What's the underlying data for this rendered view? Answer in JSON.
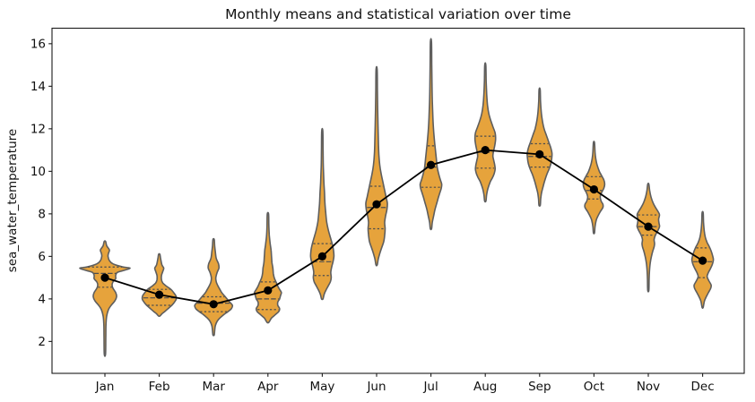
{
  "figure": {
    "title": "Monthly means and statistical variation over time",
    "ylabel": "sea_water_temperature"
  },
  "chart_data": {
    "type": "violin",
    "title": "Monthly means and statistical variation over time",
    "xlabel": "",
    "ylabel": "sea_water_temperature",
    "categories": [
      "Jan",
      "Feb",
      "Mar",
      "Apr",
      "May",
      "Jun",
      "Jul",
      "Aug",
      "Sep",
      "Oct",
      "Nov",
      "Dec"
    ],
    "yticks": [
      2,
      4,
      6,
      8,
      10,
      12,
      14,
      16
    ],
    "ylim": [
      0.5,
      16.73
    ],
    "grid": false,
    "legend": "none",
    "colors": {
      "violin_fill": "#E6A33C",
      "violin_edge": "#5E5E5E",
      "quartile_line": "#4D4D4D",
      "mean_line": "#000000",
      "mean_dot": "#000000",
      "axis": "#1A1A1A",
      "text": "#111111"
    },
    "series": [
      {
        "name": "monthly_mean",
        "values": [
          5.0,
          4.2,
          3.75,
          4.4,
          6.0,
          8.45,
          10.3,
          11.0,
          10.8,
          9.15,
          7.4,
          5.8
        ]
      }
    ],
    "violins": [
      {
        "month": "Jan",
        "mean": 5.0,
        "min": 1.4,
        "max": 6.7,
        "q1": 4.55,
        "median": 5.2,
        "q3": 5.5,
        "profile": [
          [
            6.7,
            0.8
          ],
          [
            6.5,
            2
          ],
          [
            6.3,
            5
          ],
          [
            6.15,
            4
          ],
          [
            6.0,
            3.5
          ],
          [
            5.8,
            5
          ],
          [
            5.65,
            9
          ],
          [
            5.5,
            20
          ],
          [
            5.45,
            28
          ],
          [
            5.35,
            22
          ],
          [
            5.25,
            14
          ],
          [
            5.1,
            12
          ],
          [
            4.95,
            12
          ],
          [
            4.8,
            9
          ],
          [
            4.65,
            8
          ],
          [
            4.5,
            9
          ],
          [
            4.3,
            12
          ],
          [
            4.1,
            13
          ],
          [
            3.9,
            11
          ],
          [
            3.7,
            7
          ],
          [
            3.5,
            4
          ],
          [
            3.2,
            2
          ],
          [
            2.8,
            1.2
          ],
          [
            2.2,
            1
          ],
          [
            1.4,
            0.7
          ]
        ]
      },
      {
        "month": "Feb",
        "mean": 4.2,
        "min": 3.2,
        "max": 6.1,
        "q1": 3.7,
        "median": 4.05,
        "q3": 4.45,
        "profile": [
          [
            6.1,
            0.7
          ],
          [
            5.9,
            1.5
          ],
          [
            5.6,
            3
          ],
          [
            5.45,
            5
          ],
          [
            5.3,
            4
          ],
          [
            5.1,
            2.5
          ],
          [
            4.9,
            2.5
          ],
          [
            4.75,
            4
          ],
          [
            4.6,
            8
          ],
          [
            4.45,
            13
          ],
          [
            4.3,
            16
          ],
          [
            4.15,
            18.5
          ],
          [
            4.0,
            19
          ],
          [
            3.85,
            17
          ],
          [
            3.7,
            14
          ],
          [
            3.55,
            10
          ],
          [
            3.4,
            6
          ],
          [
            3.3,
            3
          ],
          [
            3.2,
            0.8
          ]
        ]
      },
      {
        "month": "Mar",
        "mean": 3.75,
        "min": 2.3,
        "max": 6.8,
        "q1": 3.4,
        "median": 3.8,
        "q3": 4.1,
        "profile": [
          [
            6.8,
            0.7
          ],
          [
            6.5,
            1.2
          ],
          [
            6.2,
            2
          ],
          [
            5.9,
            3
          ],
          [
            5.65,
            5.5
          ],
          [
            5.45,
            6
          ],
          [
            5.25,
            4
          ],
          [
            5.0,
            2.5
          ],
          [
            4.8,
            3
          ],
          [
            4.6,
            5
          ],
          [
            4.45,
            7
          ],
          [
            4.3,
            9
          ],
          [
            4.15,
            12
          ],
          [
            4.0,
            15
          ],
          [
            3.85,
            18
          ],
          [
            3.7,
            21
          ],
          [
            3.55,
            20
          ],
          [
            3.4,
            16
          ],
          [
            3.25,
            11
          ],
          [
            3.1,
            7
          ],
          [
            2.95,
            4
          ],
          [
            2.75,
            2
          ],
          [
            2.5,
            1.2
          ],
          [
            2.3,
            0.7
          ]
        ]
      },
      {
        "month": "Apr",
        "mean": 4.4,
        "min": 2.9,
        "max": 8.0,
        "q1": 3.5,
        "median": 4.0,
        "q3": 4.8,
        "profile": [
          [
            8.0,
            0.7
          ],
          [
            7.5,
            1
          ],
          [
            7.0,
            1.5
          ],
          [
            6.6,
            2.5
          ],
          [
            6.3,
            3.5
          ],
          [
            6.0,
            4
          ],
          [
            5.7,
            4.5
          ],
          [
            5.45,
            5.5
          ],
          [
            5.2,
            6
          ],
          [
            5.0,
            7
          ],
          [
            4.8,
            9
          ],
          [
            4.6,
            11
          ],
          [
            4.45,
            13
          ],
          [
            4.3,
            15
          ],
          [
            4.15,
            14
          ],
          [
            4.0,
            13
          ],
          [
            3.85,
            11
          ],
          [
            3.7,
            11
          ],
          [
            3.55,
            13
          ],
          [
            3.4,
            12
          ],
          [
            3.25,
            8
          ],
          [
            3.1,
            4
          ],
          [
            2.9,
            1
          ]
        ]
      },
      {
        "month": "May",
        "mean": 6.0,
        "min": 4.0,
        "max": 11.9,
        "q1": 5.1,
        "median": 5.75,
        "q3": 6.6,
        "profile": [
          [
            11.9,
            0.6
          ],
          [
            11.0,
            0.9
          ],
          [
            10.2,
            1.2
          ],
          [
            9.5,
            1.8
          ],
          [
            9.0,
            2.5
          ],
          [
            8.5,
            3
          ],
          [
            8.0,
            4
          ],
          [
            7.6,
            5
          ],
          [
            7.2,
            7
          ],
          [
            6.9,
            9
          ],
          [
            6.6,
            11
          ],
          [
            6.3,
            12.5
          ],
          [
            6.0,
            13
          ],
          [
            5.75,
            12
          ],
          [
            5.5,
            10.5
          ],
          [
            5.25,
            9.5
          ],
          [
            5.0,
            10
          ],
          [
            4.8,
            9
          ],
          [
            4.6,
            6.5
          ],
          [
            4.4,
            4
          ],
          [
            4.2,
            2
          ],
          [
            4.0,
            0.8
          ]
        ]
      },
      {
        "month": "Jun",
        "mean": 8.45,
        "min": 5.6,
        "max": 14.8,
        "q1": 7.3,
        "median": 8.3,
        "q3": 9.3,
        "profile": [
          [
            14.8,
            0.6
          ],
          [
            13.8,
            0.9
          ],
          [
            12.9,
            1.2
          ],
          [
            12.1,
            1.6
          ],
          [
            11.4,
            2
          ],
          [
            10.8,
            2.5
          ],
          [
            10.3,
            3.5
          ],
          [
            9.9,
            5
          ],
          [
            9.5,
            7
          ],
          [
            9.1,
            9
          ],
          [
            8.8,
            10.5
          ],
          [
            8.5,
            12
          ],
          [
            8.2,
            11.5
          ],
          [
            7.9,
            10
          ],
          [
            7.6,
            9
          ],
          [
            7.3,
            9.5
          ],
          [
            7.0,
            9
          ],
          [
            6.7,
            8
          ],
          [
            6.45,
            6
          ],
          [
            6.2,
            4
          ],
          [
            5.9,
            2
          ],
          [
            5.6,
            0.7
          ]
        ]
      },
      {
        "month": "Jul",
        "mean": 10.3,
        "min": 7.3,
        "max": 16.1,
        "q1": 9.25,
        "median": 10.2,
        "q3": 11.2,
        "profile": [
          [
            16.1,
            0.6
          ],
          [
            15.0,
            0.9
          ],
          [
            14.0,
            1.2
          ],
          [
            13.2,
            1.6
          ],
          [
            12.5,
            2.2
          ],
          [
            11.9,
            3
          ],
          [
            11.4,
            4
          ],
          [
            11.0,
            5
          ],
          [
            10.6,
            6
          ],
          [
            10.2,
            7
          ],
          [
            9.9,
            8.5
          ],
          [
            9.6,
            10.5
          ],
          [
            9.4,
            12
          ],
          [
            9.2,
            11.5
          ],
          [
            9.0,
            10
          ],
          [
            8.8,
            8.5
          ],
          [
            8.5,
            6.5
          ],
          [
            8.2,
            4.5
          ],
          [
            7.9,
            3
          ],
          [
            7.6,
            1.5
          ],
          [
            7.3,
            0.7
          ]
        ]
      },
      {
        "month": "Aug",
        "mean": 11.0,
        "min": 8.6,
        "max": 15.0,
        "q1": 10.15,
        "median": 10.9,
        "q3": 11.65,
        "profile": [
          [
            15.0,
            0.6
          ],
          [
            14.2,
            1
          ],
          [
            13.6,
            1.6
          ],
          [
            13.1,
            2.5
          ],
          [
            12.7,
            4
          ],
          [
            12.4,
            6
          ],
          [
            12.1,
            8.5
          ],
          [
            11.8,
            11
          ],
          [
            11.5,
            11.5
          ],
          [
            11.2,
            10.5
          ],
          [
            10.9,
            9
          ],
          [
            10.7,
            8.5
          ],
          [
            10.5,
            9.5
          ],
          [
            10.3,
            10.5
          ],
          [
            10.1,
            11
          ],
          [
            9.9,
            10
          ],
          [
            9.7,
            8
          ],
          [
            9.5,
            5.5
          ],
          [
            9.2,
            3
          ],
          [
            8.9,
            1.5
          ],
          [
            8.6,
            0.7
          ]
        ]
      },
      {
        "month": "Sep",
        "mean": 10.8,
        "min": 8.4,
        "max": 13.85,
        "q1": 10.2,
        "median": 10.7,
        "q3": 11.3,
        "profile": [
          [
            13.85,
            0.6
          ],
          [
            13.3,
            1
          ],
          [
            12.8,
            1.8
          ],
          [
            12.4,
            3
          ],
          [
            12.0,
            5
          ],
          [
            11.7,
            7.5
          ],
          [
            11.4,
            10
          ],
          [
            11.1,
            12.5
          ],
          [
            10.85,
            13.8
          ],
          [
            10.6,
            13.5
          ],
          [
            10.35,
            12.5
          ],
          [
            10.1,
            10.5
          ],
          [
            9.85,
            8
          ],
          [
            9.6,
            6
          ],
          [
            9.3,
            4
          ],
          [
            9.0,
            2.2
          ],
          [
            8.7,
            1.2
          ],
          [
            8.4,
            0.7
          ]
        ]
      },
      {
        "month": "Oct",
        "mean": 9.15,
        "min": 7.1,
        "max": 11.35,
        "q1": 8.7,
        "median": 9.1,
        "q3": 9.75,
        "profile": [
          [
            11.35,
            0.6
          ],
          [
            10.9,
            1.2
          ],
          [
            10.6,
            2
          ],
          [
            10.3,
            3.5
          ],
          [
            10.0,
            6
          ],
          [
            9.8,
            8.5
          ],
          [
            9.6,
            11
          ],
          [
            9.4,
            12
          ],
          [
            9.2,
            11
          ],
          [
            9.0,
            8.5
          ],
          [
            8.8,
            7
          ],
          [
            8.6,
            8
          ],
          [
            8.45,
            10
          ],
          [
            8.3,
            10
          ],
          [
            8.1,
            7
          ],
          [
            7.9,
            4.5
          ],
          [
            7.7,
            2.5
          ],
          [
            7.4,
            1.2
          ],
          [
            7.1,
            0.6
          ]
        ]
      },
      {
        "month": "Nov",
        "mean": 7.4,
        "min": 4.4,
        "max": 9.4,
        "q1": 7.0,
        "median": 7.4,
        "q3": 7.95,
        "profile": [
          [
            9.4,
            0.6
          ],
          [
            9.1,
            1.5
          ],
          [
            8.8,
            3
          ],
          [
            8.55,
            5
          ],
          [
            8.3,
            8
          ],
          [
            8.1,
            11
          ],
          [
            7.95,
            12.5
          ],
          [
            7.75,
            11.5
          ],
          [
            7.55,
            12
          ],
          [
            7.4,
            12.5
          ],
          [
            7.2,
            10.5
          ],
          [
            7.0,
            8
          ],
          [
            6.8,
            6.5
          ],
          [
            6.6,
            7
          ],
          [
            6.45,
            6.5
          ],
          [
            6.25,
            5
          ],
          [
            6.0,
            3.5
          ],
          [
            5.7,
            2.2
          ],
          [
            5.3,
            1.3
          ],
          [
            4.9,
            0.9
          ],
          [
            4.4,
            0.6
          ]
        ]
      },
      {
        "month": "Dec",
        "mean": 5.8,
        "min": 3.6,
        "max": 8.05,
        "q1": 5.0,
        "median": 5.75,
        "q3": 6.4,
        "profile": [
          [
            8.05,
            0.6
          ],
          [
            7.6,
            1
          ],
          [
            7.2,
            1.8
          ],
          [
            6.9,
            3
          ],
          [
            6.65,
            5
          ],
          [
            6.45,
            7.5
          ],
          [
            6.25,
            9.5
          ],
          [
            6.05,
            11
          ],
          [
            5.85,
            12
          ],
          [
            5.65,
            11
          ],
          [
            5.45,
            9
          ],
          [
            5.25,
            6.5
          ],
          [
            5.05,
            5
          ],
          [
            4.85,
            7
          ],
          [
            4.65,
            9.5
          ],
          [
            4.5,
            9
          ],
          [
            4.3,
            6.5
          ],
          [
            4.1,
            4
          ],
          [
            3.9,
            2
          ],
          [
            3.6,
            0.6
          ]
        ]
      }
    ]
  }
}
